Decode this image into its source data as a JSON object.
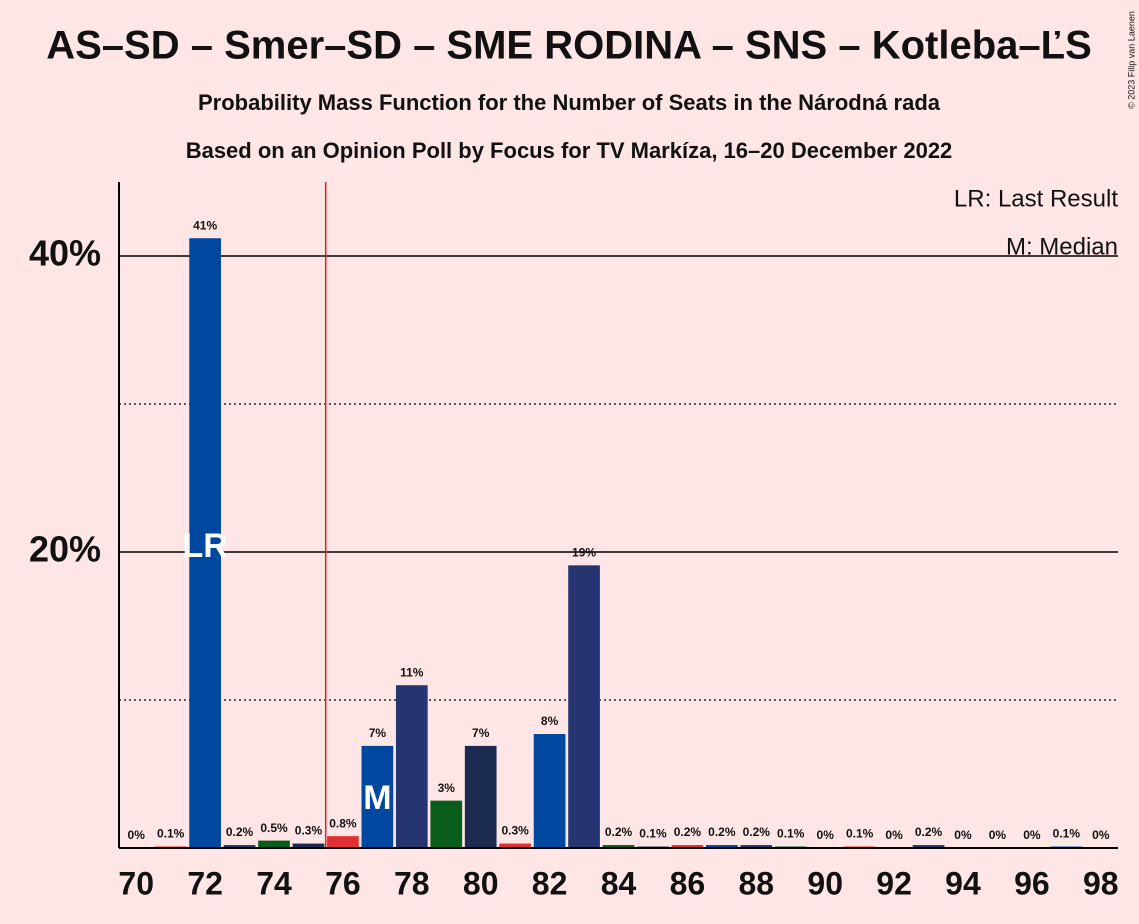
{
  "chart_data": {
    "type": "bar",
    "title": "AS–SD – Smer–SD – SME RODINA – SNS – Kotleba–ĽS",
    "subtitle": "Probability Mass Function for the Number of Seats in the Národná rada",
    "subtitle2": "Based on an Opinion Poll by Focus for TV Markíza, 16–20 December 2022",
    "copyright": "© 2023 Filip van Laenen",
    "x": [
      70,
      71,
      72,
      73,
      74,
      75,
      76,
      77,
      78,
      79,
      80,
      81,
      82,
      83,
      84,
      85,
      86,
      87,
      88,
      89,
      90,
      91,
      92,
      93,
      94,
      95,
      96,
      97,
      98
    ],
    "values": [
      0,
      0.1,
      41.2,
      0.2,
      0.5,
      0.3,
      0.8,
      6.9,
      11,
      3.2,
      6.9,
      0.3,
      7.7,
      19.1,
      0.2,
      0.1,
      0.2,
      0.2,
      0.2,
      0.1,
      0,
      0.1,
      0,
      0.2,
      0,
      0,
      0,
      0.1,
      0
    ],
    "value_labels": [
      "0%",
      "0.1%",
      "41%",
      "0.2%",
      "0.5%",
      "0.3%",
      "0.8%",
      "7%",
      "11%",
      "3%",
      "7%",
      "0.3%",
      "8%",
      "19%",
      "0.2%",
      "0.1%",
      "0.2%",
      "0.2%",
      "0.2%",
      "0.1%",
      "0%",
      "0.1%",
      "0%",
      "0.2%",
      "0%",
      "0%",
      "0%",
      "0.1%",
      "0%"
    ],
    "colors": [
      "#0047a0",
      "#243572",
      "#0a5c1a",
      "#1a2a50",
      "#e03030"
    ],
    "xlim": [
      69.5,
      98.5
    ],
    "xticks": [
      70,
      72,
      74,
      76,
      78,
      80,
      82,
      84,
      86,
      88,
      90,
      92,
      94,
      96,
      98
    ],
    "ylim": [
      0,
      45
    ],
    "yticks": [
      {
        "value": 20,
        "label": "20%"
      },
      {
        "value": 40,
        "label": "40%"
      }
    ],
    "minor_yticks": [
      10,
      30
    ],
    "grid": true,
    "majority": 76,
    "last_result": {
      "seat": 72,
      "label": "LR"
    },
    "median": {
      "seat": 77,
      "label": "M"
    },
    "legend": [
      "LR: Last Result",
      "M: Median"
    ],
    "legend_position": "upper right"
  }
}
